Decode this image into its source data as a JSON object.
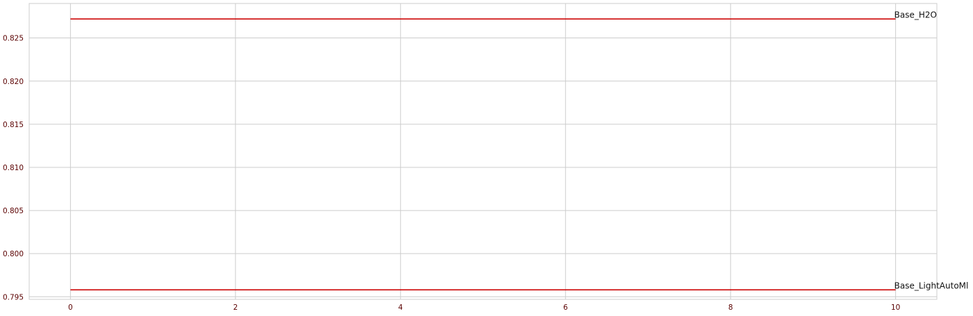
{
  "chart_data": {
    "type": "line",
    "title": "",
    "xlabel": "",
    "ylabel": "",
    "xlim": [
      -0.5,
      10.5
    ],
    "ylim": [
      0.7947,
      0.829
    ],
    "x_ticks": [
      0,
      2,
      4,
      6,
      8,
      10
    ],
    "y_ticks": [
      0.795,
      0.8,
      0.805,
      0.81,
      0.815,
      0.82,
      0.825
    ],
    "grid": true,
    "legend": "none",
    "line_color": "#cc0000",
    "tick_label_color": "#5a0000",
    "grid_color": "#cccccc",
    "series": [
      {
        "name": "Base_H2O",
        "x": [
          0,
          10
        ],
        "y": [
          0.8272,
          0.8272
        ]
      },
      {
        "name": "Base_LightAutoMl",
        "x": [
          0,
          10
        ],
        "y": [
          0.7958,
          0.7958
        ]
      }
    ]
  }
}
